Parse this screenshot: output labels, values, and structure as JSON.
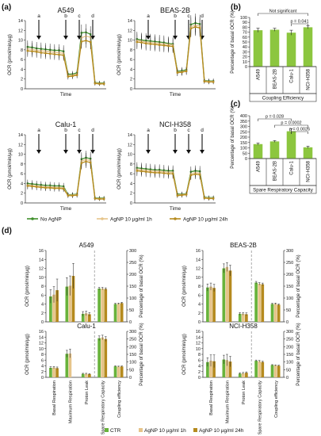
{
  "panel_labels": {
    "a": "(a)",
    "b": "(b)",
    "c": "(c)",
    "d": "(d)"
  },
  "colors": {
    "no_agnp": "#3f8f2b",
    "h1": "#e6c48a",
    "h24": "#b58a1e",
    "ctr": "#68b33b",
    "bar_b": "#8cc63f",
    "arrow": "#111111",
    "grid": "#dddddd"
  },
  "legend_a": [
    "No AgNP",
    "AgNP 10 µg/ml 1h",
    "AgNP 10 µg/ml 24h"
  ],
  "legend_d": [
    "CTR",
    "AgNP 10 µg/ml 1h",
    "AgNP 10 µg/ml 24h"
  ],
  "chart_data": [
    {
      "type": "line",
      "panel": "a",
      "title": "A549",
      "ylabel": "OCR (pmol/min/µg)",
      "xlabel": "Time",
      "ylim": [
        0,
        14
      ],
      "yticks": [
        0,
        2,
        4,
        6,
        8,
        10,
        12,
        14
      ],
      "injection_labels": [
        "a",
        "b",
        "c",
        "d"
      ],
      "injection_at": [
        3.5,
        9.5,
        12.5,
        15.5
      ],
      "x": [
        1,
        2,
        3,
        4,
        5,
        6,
        7,
        8,
        9,
        10,
        11,
        12,
        13,
        14,
        15,
        16,
        17,
        18
      ],
      "series": [
        {
          "name": "No AgNP",
          "values": [
            8.6,
            8.5,
            8.3,
            8.2,
            8.1,
            8.0,
            7.9,
            7.9,
            7.7,
            3.0,
            3.0,
            3.3,
            11.5,
            11.6,
            11.2,
            1.3,
            1.2,
            1.2
          ]
        },
        {
          "name": "AgNP 10 µg/ml 1h",
          "values": [
            8.2,
            8.1,
            7.9,
            7.8,
            7.7,
            7.6,
            7.5,
            7.4,
            7.3,
            2.7,
            2.8,
            3.0,
            10.5,
            10.8,
            10.6,
            1.2,
            1.1,
            1.1
          ]
        },
        {
          "name": "AgNP 10 µg/ml 24h",
          "values": [
            7.8,
            7.7,
            7.6,
            7.4,
            7.3,
            7.2,
            7.1,
            7.0,
            6.9,
            2.5,
            2.6,
            2.8,
            9.7,
            9.9,
            9.6,
            1.1,
            1.0,
            1.0
          ]
        }
      ]
    },
    {
      "type": "line",
      "panel": "a",
      "title": "BEAS-2B",
      "ylabel": "OCR (pmol/min/µg)",
      "xlabel": "Time",
      "ylim": [
        0,
        14
      ],
      "yticks": [
        0,
        2,
        4,
        6,
        8,
        10,
        12,
        14
      ],
      "injection_labels": [
        "a",
        "b",
        "c",
        "d"
      ],
      "injection_at": [
        3.5,
        9.5,
        12.5,
        15.5
      ],
      "x": [
        1,
        2,
        3,
        4,
        5,
        6,
        7,
        8,
        9,
        10,
        11,
        12,
        13,
        14,
        15,
        16,
        17,
        18
      ],
      "series": [
        {
          "name": "No AgNP",
          "values": [
            10.2,
            10.0,
            9.9,
            9.8,
            9.7,
            9.6,
            9.5,
            9.3,
            9.2,
            3.6,
            3.7,
            3.9,
            13.2,
            13.5,
            13.3,
            1.7,
            1.6,
            1.6
          ]
        },
        {
          "name": "AgNP 10 µg/ml 1h",
          "values": [
            9.9,
            9.8,
            9.6,
            9.5,
            9.4,
            9.3,
            9.2,
            9.1,
            9.0,
            3.4,
            3.5,
            3.7,
            12.8,
            13.0,
            12.9,
            1.6,
            1.5,
            1.5
          ]
        },
        {
          "name": "AgNP 10 µg/ml 24h",
          "values": [
            9.6,
            9.5,
            9.3,
            9.2,
            9.1,
            9.0,
            8.9,
            8.8,
            8.7,
            3.3,
            3.4,
            3.6,
            12.4,
            12.7,
            12.5,
            1.5,
            1.4,
            1.4
          ]
        }
      ]
    },
    {
      "type": "line",
      "panel": "a",
      "title": "Calu-1",
      "ylabel": "OCR (pmol/min/µg)",
      "xlabel": "Time",
      "ylim": [
        0,
        14
      ],
      "yticks": [
        0,
        2,
        4,
        6,
        8,
        10,
        12,
        14
      ],
      "injection_labels": [
        "a",
        "b",
        "c",
        "d"
      ],
      "injection_at": [
        3.5,
        9.5,
        12.5,
        15.5
      ],
      "x": [
        1,
        2,
        3,
        4,
        5,
        6,
        7,
        8,
        9,
        10,
        11,
        12,
        13,
        14,
        15,
        16,
        17,
        18
      ],
      "series": [
        {
          "name": "No AgNP",
          "values": [
            4.0,
            3.9,
            3.8,
            3.7,
            3.6,
            3.6,
            3.5,
            3.5,
            3.4,
            1.7,
            1.7,
            1.8,
            9.0,
            9.3,
            9.1,
            1.0,
            1.0,
            1.0
          ]
        },
        {
          "name": "AgNP 10 µg/ml 1h",
          "values": [
            3.7,
            3.6,
            3.5,
            3.4,
            3.3,
            3.3,
            3.2,
            3.2,
            3.1,
            1.6,
            1.6,
            1.7,
            8.6,
            8.9,
            8.7,
            0.9,
            0.9,
            0.9
          ]
        },
        {
          "name": "AgNP 10 µg/ml 24h",
          "values": [
            3.5,
            3.4,
            3.3,
            3.2,
            3.1,
            3.1,
            3.0,
            3.0,
            2.9,
            1.5,
            1.5,
            1.6,
            8.2,
            8.5,
            8.3,
            0.9,
            0.8,
            0.8
          ]
        }
      ]
    },
    {
      "type": "line",
      "panel": "a",
      "title": "NCI-H358",
      "ylabel": "OCR (pmol/min/µg)",
      "xlabel": "Time",
      "ylim": [
        0,
        14
      ],
      "yticks": [
        0,
        2,
        4,
        6,
        8,
        10,
        12,
        14
      ],
      "injection_labels": [
        "a",
        "b",
        "c",
        "d"
      ],
      "injection_at": [
        3.5,
        9.5,
        12.5,
        15.5
      ],
      "x": [
        1,
        2,
        3,
        4,
        5,
        6,
        7,
        8,
        9,
        10,
        11,
        12,
        13,
        14,
        15,
        16,
        17,
        18
      ],
      "series": [
        {
          "name": "No AgNP",
          "values": [
            7.2,
            7.1,
            7.0,
            6.9,
            6.8,
            6.8,
            6.7,
            6.6,
            6.6,
            1.8,
            1.8,
            1.9,
            6.4,
            6.6,
            6.5,
            1.2,
            1.1,
            1.1
          ]
        },
        {
          "name": "AgNP 10 µg/ml 1h",
          "values": [
            6.9,
            6.8,
            6.7,
            6.6,
            6.5,
            6.5,
            6.4,
            6.3,
            6.3,
            1.6,
            1.7,
            1.8,
            6.0,
            6.2,
            6.1,
            1.1,
            1.0,
            1.0
          ]
        },
        {
          "name": "AgNP 10 µg/ml 24h",
          "values": [
            6.6,
            6.5,
            6.4,
            6.3,
            6.2,
            6.2,
            6.1,
            6.0,
            6.0,
            1.5,
            1.6,
            1.7,
            5.7,
            5.9,
            5.8,
            1.0,
            0.9,
            0.9
          ]
        }
      ]
    },
    {
      "type": "bar",
      "panel": "b",
      "ylabel": "Percentage of basal OCR (%)",
      "xlabel": "Coupling Efficiency",
      "ylim": [
        0,
        100
      ],
      "yticks": [
        0,
        10,
        20,
        30,
        40,
        50,
        60,
        70,
        80,
        90,
        100
      ],
      "categories": [
        "A549",
        "BEAS-2B",
        "Calu-1",
        "NCI-H358"
      ],
      "values": [
        74,
        75,
        69,
        80
      ],
      "errors": [
        4,
        3,
        5,
        3
      ],
      "annotations": [
        {
          "from": "A549",
          "to": "NCI-H358",
          "text": "Not significant"
        },
        {
          "from": "Calu-1",
          "to": "NCI-H358",
          "text": "p = 0.041"
        }
      ]
    },
    {
      "type": "bar",
      "panel": "c",
      "ylabel": "Percentage of basal OCR (%)",
      "xlabel": "Spare Respiratory Capacity",
      "ylim": [
        0,
        400
      ],
      "yticks": [
        0,
        50,
        100,
        150,
        200,
        250,
        300,
        350,
        400
      ],
      "categories": [
        "A549",
        "BEAS-2B",
        "Calu-1",
        "NCI-H358"
      ],
      "values": [
        135,
        160,
        255,
        105
      ],
      "errors": [
        10,
        8,
        25,
        10
      ],
      "annotations": [
        {
          "from": "A549",
          "to": "Calu-1",
          "text": "p = 0.028"
        },
        {
          "from": "BEAS-2B",
          "to": "NCI-H358",
          "text": "p = 0.0002"
        },
        {
          "from": "Calu-1",
          "to": "NCI-H358",
          "text": "p = 0.0026"
        }
      ]
    },
    {
      "type": "bar",
      "panel": "d",
      "title": "A549",
      "ylabel": "OCR (pmol/min/µg)",
      "y2label": "Percentage of basal OCR (%)",
      "ylim": [
        0,
        16
      ],
      "yticks": [
        0,
        2,
        4,
        6,
        8,
        10,
        12,
        14,
        16
      ],
      "y2lim": [
        0,
        300
      ],
      "y2ticks": [
        0,
        50,
        100,
        150,
        200,
        250,
        300
      ],
      "categories": [
        "Basal Respiration",
        "Maximum Respiration",
        "Proton Leak",
        "Spare Respiratory Capacity",
        "Coupling efficiency"
      ],
      "percent_axis_categories": [
        "Spare Respiratory Capacity",
        "Coupling efficiency"
      ],
      "series": [
        {
          "name": "CTR",
          "values": [
            5.7,
            7.9,
            1.8,
            140,
            75
          ],
          "errors": [
            1.5,
            2.0,
            0.5,
            5,
            3
          ]
        },
        {
          "name": "AgNP 10 µg/ml 1h",
          "values": [
            6.1,
            8.1,
            1.9,
            140,
            76
          ],
          "errors": [
            1.8,
            2.2,
            0.5,
            5,
            3
          ]
        },
        {
          "name": "AgNP 10 µg/ml 24h",
          "values": [
            7.1,
            10.3,
            1.7,
            138,
            79
          ],
          "errors": [
            2.5,
            2.8,
            0.4,
            5,
            3
          ]
        }
      ]
    },
    {
      "type": "bar",
      "panel": "d",
      "title": "BEAS-2B",
      "ylabel": "OCR (pmol/min/µg)",
      "y2label": "Percentage of basal OCR (%)",
      "ylim": [
        0,
        16
      ],
      "yticks": [
        0,
        2,
        4,
        6,
        8,
        10,
        12,
        14,
        16
      ],
      "y2lim": [
        0,
        300
      ],
      "y2ticks": [
        0,
        50,
        100,
        150,
        200,
        250,
        300
      ],
      "categories": [
        "Basal Respiration",
        "Maximum Respiration",
        "Proton Leak",
        "Spare Respiratory Capacity",
        "Coupling efficiency"
      ],
      "percent_axis_categories": [
        "Spare Respiratory Capacity",
        "Coupling efficiency"
      ],
      "series": [
        {
          "name": "CTR",
          "values": [
            7.7,
            12.0,
            1.8,
            165,
            75
          ],
          "errors": [
            0.8,
            1.0,
            0.3,
            5,
            3
          ]
        },
        {
          "name": "AgNP 10 µg/ml 1h",
          "values": [
            7.9,
            12.3,
            1.8,
            160,
            76
          ],
          "errors": [
            0.8,
            1.0,
            0.3,
            5,
            3
          ]
        },
        {
          "name": "AgNP 10 µg/ml 24h",
          "values": [
            7.6,
            11.5,
            1.7,
            158,
            72
          ],
          "errors": [
            0.8,
            1.2,
            0.3,
            5,
            3
          ]
        }
      ]
    },
    {
      "type": "bar",
      "panel": "d",
      "title": "Calu-1",
      "ylabel": "OCR (pmol/min/µg)",
      "y2label": "Percentage of basal OCR (%)",
      "ylim": [
        0,
        16
      ],
      "yticks": [
        0,
        2,
        4,
        6,
        8,
        10,
        12,
        14,
        16
      ],
      "y2lim": [
        0,
        300
      ],
      "y2ticks": [
        0,
        50,
        100,
        150,
        200,
        250,
        300
      ],
      "categories": [
        "Basal Respiration",
        "Maximum Respiration",
        "Proton Leak",
        "Spare Respiratory Capacity",
        "Coupling efficiency"
      ],
      "percent_axis_categories": [
        "Spare Respiratory Capacity",
        "Coupling efficiency"
      ],
      "series": [
        {
          "name": "CTR",
          "values": [
            3.3,
            8.2,
            1.2,
            255,
            72
          ],
          "errors": [
            0.4,
            1.2,
            0.2,
            15,
            3
          ]
        },
        {
          "name": "AgNP 10 µg/ml 1h",
          "values": [
            3.4,
            8.3,
            1.2,
            260,
            70
          ],
          "errors": [
            0.4,
            1.5,
            0.2,
            15,
            3
          ]
        },
        {
          "name": "AgNP 10 µg/ml 24h",
          "values": [
            3.2,
            0,
            1.1,
            250,
            71
          ],
          "errors": [
            0.4,
            0,
            0.2,
            15,
            3
          ]
        }
      ]
    },
    {
      "type": "bar",
      "panel": "d",
      "title": "NCI-H358",
      "ylabel": "OCR (pmol/min/µg)",
      "y2label": "Percentage of basal OCR (%)",
      "ylim": [
        0,
        16
      ],
      "yticks": [
        0,
        2,
        4,
        6,
        8,
        10,
        12,
        14,
        16
      ],
      "y2lim": [
        0,
        300
      ],
      "y2ticks": [
        0,
        50,
        100,
        150,
        200,
        250,
        300
      ],
      "categories": [
        "Basal Respiration",
        "Maximum Respiration",
        "Proton Leak",
        "Spare Respiratory Capacity",
        "Coupling efficiency"
      ],
      "percent_axis_categories": [
        "Spare Respiratory Capacity",
        "Coupling efficiency"
      ],
      "series": [
        {
          "name": "CTR",
          "values": [
            5.3,
            6.2,
            1.3,
            108,
            80
          ],
          "errors": [
            1.5,
            1.5,
            0.3,
            5,
            3
          ]
        },
        {
          "name": "AgNP 10 µg/ml 1h",
          "values": [
            5.8,
            6.0,
            1.4,
            105,
            78
          ],
          "errors": [
            2.0,
            2.0,
            0.3,
            5,
            3
          ]
        },
        {
          "name": "AgNP 10 µg/ml 24h",
          "values": [
            5.6,
            5.5,
            1.6,
            100,
            76
          ],
          "errors": [
            2.2,
            1.8,
            0.3,
            5,
            3
          ]
        }
      ]
    }
  ]
}
